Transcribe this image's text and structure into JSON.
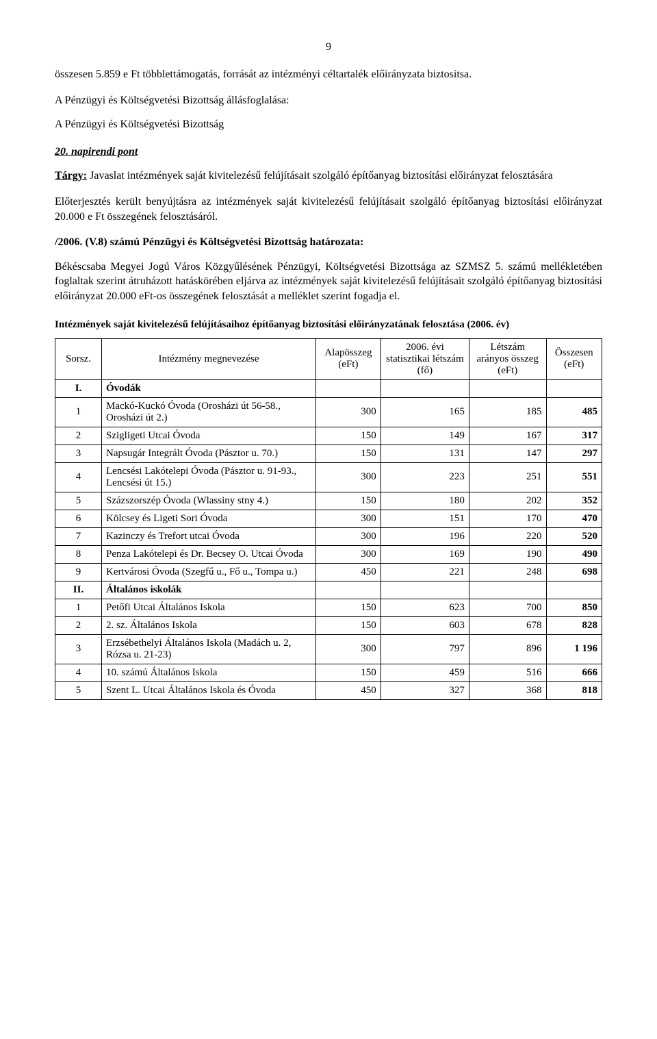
{
  "page": {
    "number": "9"
  },
  "intro": {
    "p1": "összesen 5.859 e Ft többlettámogatás, forrását az intézményi céltartalék előirányzata biztosítsa.",
    "p2": "A Pénzügyi és Költségvetési Bizottság állásfoglalása:",
    "p3": "A Pénzügyi és Költségvetési Bizottság"
  },
  "napirendi": {
    "header": "20. napirendi pont",
    "targy_label": "Tárgy:",
    "targy_text": " Javaslat intézmények saját kivitelezésű felújításait szolgáló építőanyag biztosítási előirányzat felosztására",
    "eloterj": "Előterjesztés került benyújtásra az intézmények saját kivitelezésű felújításait szolgáló építőanyag biztosítási előirányzat 20.000 e Ft összegének felosztásáról.",
    "hatarozat_title": "/2006. (V.8) számú Pénzügyi és Költségvetési Bizottság határozata:",
    "hatarozat_body": "Békéscsaba Megyei Jogú Város Közgyűlésének Pénzügyi, Költségvetési Bizottsága az SZMSZ 5. számú mellékletében foglaltak szerint átruházott hatáskörében eljárva az intézmények saját kivitelezésű felújításait szolgáló építőanyag biztosítási előirányzat 20.000 eFt-os összegének felosztását a melléklet szerint fogadja el."
  },
  "table": {
    "title": "Intézmények saját kivitelezésű felújításaihoz építőanyag biztosítási előirányzatának felosztása (2006. év)",
    "headers": {
      "sorsz": "Sorsz.",
      "intezmeny": "Intézmény megnevezése",
      "alap": "Alapösszeg (eFt)",
      "letszam": "2006. évi statisztikai létszám (fő)",
      "aranyos": "Létszám arányos összeg (eFt)",
      "osszesen": "Összesen (eFt)"
    },
    "sections": [
      {
        "roman": "I.",
        "label": "Óvodák",
        "rows": [
          {
            "n": "1",
            "name": "Mackó-Kuckó Óvoda (Orosházi út 56-58., Orosházi út 2.)",
            "alap": "300",
            "letszam": "165",
            "aranyos": "185",
            "ossz": "485"
          },
          {
            "n": "2",
            "name": "Szigligeti Utcai Óvoda",
            "alap": "150",
            "letszam": "149",
            "aranyos": "167",
            "ossz": "317"
          },
          {
            "n": "3",
            "name": "Napsugár Integrált Óvoda (Pásztor u. 70.)",
            "alap": "150",
            "letszam": "131",
            "aranyos": "147",
            "ossz": "297"
          },
          {
            "n": "4",
            "name": "Lencsési Lakótelepi Óvoda (Pásztor u. 91-93., Lencsési út 15.)",
            "alap": "300",
            "letszam": "223",
            "aranyos": "251",
            "ossz": "551"
          },
          {
            "n": "5",
            "name": "Százszorszép Óvoda (Wlassiny stny 4.)",
            "alap": "150",
            "letszam": "180",
            "aranyos": "202",
            "ossz": "352"
          },
          {
            "n": "6",
            "name": "Kölcsey és Ligeti Sori Óvoda",
            "alap": "300",
            "letszam": "151",
            "aranyos": "170",
            "ossz": "470"
          },
          {
            "n": "7",
            "name": "Kazinczy és Trefort utcai Óvoda",
            "alap": "300",
            "letszam": "196",
            "aranyos": "220",
            "ossz": "520"
          },
          {
            "n": "8",
            "name": "Penza Lakótelepi és Dr. Becsey O. Utcai Óvoda",
            "alap": "300",
            "letszam": "169",
            "aranyos": "190",
            "ossz": "490"
          },
          {
            "n": "9",
            "name": "Kertvárosi Óvoda (Szegfű u., Fő u., Tompa u.)",
            "alap": "450",
            "letszam": "221",
            "aranyos": "248",
            "ossz": "698"
          }
        ]
      },
      {
        "roman": "II.",
        "label": "Általános iskolák",
        "rows": [
          {
            "n": "1",
            "name": "Petőfi Utcai Általános Iskola",
            "alap": "150",
            "letszam": "623",
            "aranyos": "700",
            "ossz": "850"
          },
          {
            "n": "2",
            "name": "2. sz. Általános Iskola",
            "alap": "150",
            "letszam": "603",
            "aranyos": "678",
            "ossz": "828"
          },
          {
            "n": "3",
            "name": "Erzsébethelyi Általános Iskola (Madách u. 2, Rózsa u. 21-23)",
            "alap": "300",
            "letszam": "797",
            "aranyos": "896",
            "ossz": "1 196"
          },
          {
            "n": "4",
            "name": "10. számú Általános Iskola",
            "alap": "150",
            "letszam": "459",
            "aranyos": "516",
            "ossz": "666"
          },
          {
            "n": "5",
            "name": "Szent L. Utcai Általános Iskola és Óvoda",
            "alap": "450",
            "letszam": "327",
            "aranyos": "368",
            "ossz": "818"
          }
        ]
      }
    ]
  }
}
